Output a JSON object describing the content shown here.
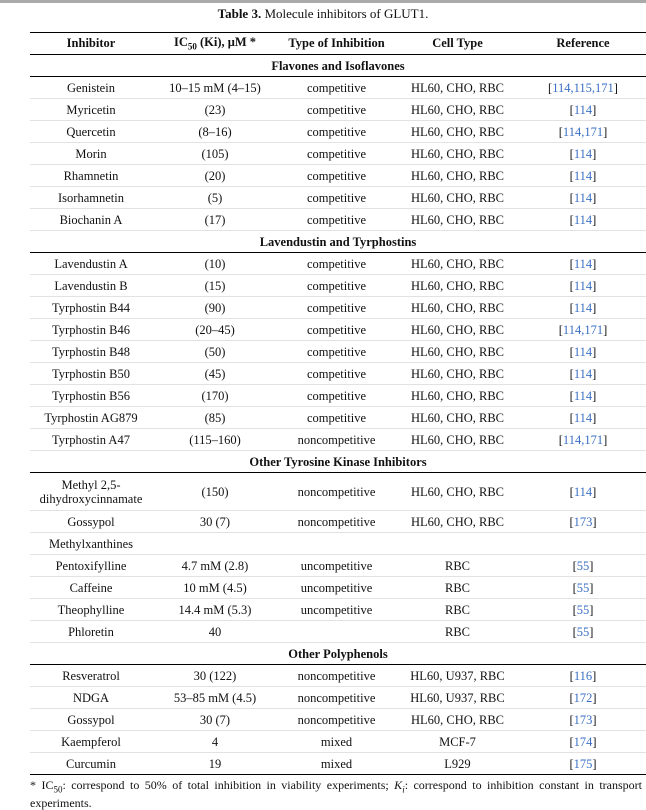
{
  "caption": {
    "label": "Table 3.",
    "text": "Molecule inhibitors of GLUT1."
  },
  "headers": {
    "inhibitor": "Inhibitor",
    "ic50_prefix": "IC",
    "ic50_sub": "50",
    "ic50_suffix": " (Ki), μM *",
    "type": "Type of Inhibition",
    "cell": "Cell Type",
    "reference": "Reference"
  },
  "colors": {
    "link": "#3a6fc4"
  },
  "groups": [
    {
      "title": "Flavones and Isoflavones",
      "bold": true,
      "rows": [
        {
          "inhibitor": "Genistein",
          "ic50": "10–15 mM (4–15)",
          "type": "competitive",
          "cell": "HL60, CHO, RBC",
          "refs": [
            "114",
            "115",
            "171"
          ]
        },
        {
          "inhibitor": "Myricetin",
          "ic50": "(23)",
          "type": "competitive",
          "cell": "HL60, CHO, RBC",
          "refs": [
            "114"
          ]
        },
        {
          "inhibitor": "Quercetin",
          "ic50": "(8–16)",
          "type": "competitive",
          "cell": "HL60, CHO, RBC",
          "refs": [
            "114",
            "171"
          ]
        },
        {
          "inhibitor": "Morin",
          "ic50": "(105)",
          "type": "competitive",
          "cell": "HL60, CHO, RBC",
          "refs": [
            "114"
          ]
        },
        {
          "inhibitor": "Rhamnetin",
          "ic50": "(20)",
          "type": "competitive",
          "cell": "HL60, CHO, RBC",
          "refs": [
            "114"
          ]
        },
        {
          "inhibitor": "Isorhamnetin",
          "ic50": "(5)",
          "type": "competitive",
          "cell": "HL60, CHO, RBC",
          "refs": [
            "114"
          ]
        },
        {
          "inhibitor": "Biochanin A",
          "ic50": "(17)",
          "type": "competitive",
          "cell": "HL60, CHO, RBC",
          "refs": [
            "114"
          ]
        }
      ]
    },
    {
      "title": "Lavendustin and Tyrphostins",
      "bold": true,
      "rows": [
        {
          "inhibitor": "Lavendustin A",
          "ic50": "(10)",
          "type": "competitive",
          "cell": "HL60, CHO, RBC",
          "refs": [
            "114"
          ]
        },
        {
          "inhibitor": "Lavendustin B",
          "ic50": "(15)",
          "type": "competitive",
          "cell": "HL60, CHO, RBC",
          "refs": [
            "114"
          ]
        },
        {
          "inhibitor": "Tyrphostin B44",
          "ic50": "(90)",
          "type": "competitive",
          "cell": "HL60, CHO, RBC",
          "refs": [
            "114"
          ]
        },
        {
          "inhibitor": "Tyrphostin B46",
          "ic50": "(20–45)",
          "type": "competitive",
          "cell": "HL60, CHO, RBC",
          "refs": [
            "114",
            "171"
          ]
        },
        {
          "inhibitor": "Tyrphostin B48",
          "ic50": "(50)",
          "type": "competitive",
          "cell": "HL60, CHO, RBC",
          "refs": [
            "114"
          ]
        },
        {
          "inhibitor": "Tyrphostin B50",
          "ic50": "(45)",
          "type": "competitive",
          "cell": "HL60, CHO, RBC",
          "refs": [
            "114"
          ]
        },
        {
          "inhibitor": "Tyrphostin B56",
          "ic50": "(170)",
          "type": "competitive",
          "cell": "HL60, CHO, RBC",
          "refs": [
            "114"
          ]
        },
        {
          "inhibitor": "Tyrphostin AG879",
          "ic50": "(85)",
          "type": "competitive",
          "cell": "HL60, CHO, RBC",
          "refs": [
            "114"
          ]
        },
        {
          "inhibitor": "Tyrphostin A47",
          "ic50": "(115–160)",
          "type": "noncompetitive",
          "cell": "HL60, CHO, RBC",
          "refs": [
            "114",
            "171"
          ]
        }
      ]
    },
    {
      "title": "Other Tyrosine Kinase Inhibitors",
      "bold": true,
      "rows": [
        {
          "inhibitor": "Methyl 2,5-dihydroxycinnamate",
          "ic50": "(150)",
          "type": "noncompetitive",
          "cell": "HL60, CHO, RBC",
          "refs": [
            "114"
          ],
          "tall": true
        },
        {
          "inhibitor": "Gossypol",
          "ic50": "30 (7)",
          "type": "noncompetitive",
          "cell": "HL60, CHO, RBC",
          "refs": [
            "173"
          ]
        }
      ]
    },
    {
      "title": "Methylxanthines",
      "bold": false,
      "rows": [
        {
          "inhibitor": "Pentoxifylline",
          "ic50": "4.7 mM (2.8)",
          "type": "uncompetitive",
          "cell": "RBC",
          "refs": [
            "55"
          ]
        },
        {
          "inhibitor": "Caffeine",
          "ic50": "10 mM (4.5)",
          "type": "uncompetitive",
          "cell": "RBC",
          "refs": [
            "55"
          ]
        },
        {
          "inhibitor": "Theophylline",
          "ic50": "14.4 mM (5.3)",
          "type": "uncompetitive",
          "cell": "RBC",
          "refs": [
            "55"
          ]
        },
        {
          "inhibitor": "Phloretin",
          "ic50": "40",
          "type": "",
          "cell": "RBC",
          "refs": [
            "55"
          ]
        }
      ]
    },
    {
      "title": "Other Polyphenols",
      "bold": true,
      "rows": [
        {
          "inhibitor": "Resveratrol",
          "ic50": "30 (122)",
          "type": "noncompetitive",
          "cell": "HL60, U937, RBC",
          "refs": [
            "116"
          ]
        },
        {
          "inhibitor": "NDGA",
          "ic50": "53–85 mM (4.5)",
          "type": "noncompetitive",
          "cell": "HL60, U937, RBC",
          "refs": [
            "172"
          ]
        },
        {
          "inhibitor": "Gossypol",
          "ic50": "30 (7)",
          "type": "noncompetitive",
          "cell": "HL60, CHO, RBC",
          "refs": [
            "173"
          ]
        },
        {
          "inhibitor": "Kaempferol",
          "ic50": "4",
          "type": "mixed",
          "cell": "MCF-7",
          "refs": [
            "174"
          ]
        },
        {
          "inhibitor": "Curcumin",
          "ic50": "19",
          "type": "mixed",
          "cell": "L929",
          "refs": [
            "175"
          ]
        }
      ]
    }
  ],
  "footnote": {
    "star": "* IC",
    "sub50": "50",
    "part1": ": correspond to 50% of total inhibition in viability experiments; ",
    "ki": "K",
    "ki_sub": "i",
    "part2": ": correspond to inhibition constant in transport experiments."
  }
}
